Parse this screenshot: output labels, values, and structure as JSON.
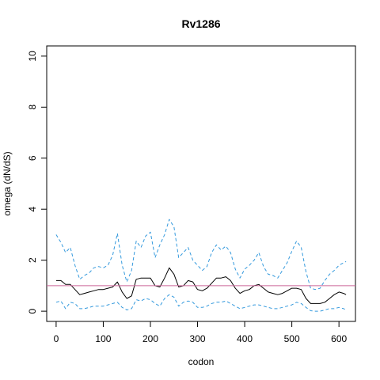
{
  "chart_data": {
    "type": "line",
    "title": "Rv1286",
    "xlabel": "codon",
    "ylabel": "omega (dN/dS)",
    "xlim": [
      -20,
      635
    ],
    "ylim": [
      -0.4,
      10.4
    ],
    "xticks": [
      0,
      100,
      200,
      300,
      400,
      500,
      600
    ],
    "yticks": [
      0,
      2,
      4,
      6,
      8,
      10
    ],
    "reference_line": {
      "y": 1,
      "color": "#cc6699"
    },
    "grid": false,
    "legend": "none",
    "series": [
      {
        "style": "solid",
        "color": "#000000",
        "points": [
          [
            0,
            1.2
          ],
          [
            10,
            1.2
          ],
          [
            20,
            1.05
          ],
          [
            30,
            1.05
          ],
          [
            40,
            0.85
          ],
          [
            50,
            0.65
          ],
          [
            60,
            0.7
          ],
          [
            70,
            0.75
          ],
          [
            80,
            0.8
          ],
          [
            90,
            0.85
          ],
          [
            100,
            0.85
          ],
          [
            110,
            0.9
          ],
          [
            120,
            0.95
          ],
          [
            130,
            1.15
          ],
          [
            140,
            0.75
          ],
          [
            150,
            0.5
          ],
          [
            160,
            0.6
          ],
          [
            170,
            1.25
          ],
          [
            180,
            1.3
          ],
          [
            190,
            1.3
          ],
          [
            200,
            1.3
          ],
          [
            210,
            1.0
          ],
          [
            220,
            0.95
          ],
          [
            230,
            1.3
          ],
          [
            240,
            1.7
          ],
          [
            250,
            1.45
          ],
          [
            260,
            0.95
          ],
          [
            270,
            1.0
          ],
          [
            280,
            1.2
          ],
          [
            290,
            1.15
          ],
          [
            300,
            0.85
          ],
          [
            310,
            0.8
          ],
          [
            320,
            0.9
          ],
          [
            330,
            1.1
          ],
          [
            340,
            1.3
          ],
          [
            350,
            1.3
          ],
          [
            360,
            1.35
          ],
          [
            370,
            1.2
          ],
          [
            380,
            0.9
          ],
          [
            390,
            0.7
          ],
          [
            400,
            0.8
          ],
          [
            410,
            0.85
          ],
          [
            420,
            1.0
          ],
          [
            430,
            1.05
          ],
          [
            440,
            0.9
          ],
          [
            450,
            0.75
          ],
          [
            460,
            0.7
          ],
          [
            470,
            0.65
          ],
          [
            480,
            0.7
          ],
          [
            490,
            0.8
          ],
          [
            500,
            0.9
          ],
          [
            510,
            0.9
          ],
          [
            520,
            0.85
          ],
          [
            530,
            0.5
          ],
          [
            540,
            0.3
          ],
          [
            550,
            0.3
          ],
          [
            560,
            0.3
          ],
          [
            570,
            0.35
          ],
          [
            580,
            0.5
          ],
          [
            590,
            0.65
          ],
          [
            600,
            0.75
          ],
          [
            610,
            0.7
          ],
          [
            615,
            0.65
          ]
        ]
      },
      {
        "style": "dashed",
        "color": "#3399dd",
        "points": [
          [
            0,
            3.0
          ],
          [
            10,
            2.7
          ],
          [
            20,
            2.3
          ],
          [
            30,
            2.5
          ],
          [
            40,
            1.8
          ],
          [
            50,
            1.25
          ],
          [
            60,
            1.4
          ],
          [
            70,
            1.5
          ],
          [
            80,
            1.7
          ],
          [
            90,
            1.75
          ],
          [
            100,
            1.7
          ],
          [
            110,
            1.8
          ],
          [
            120,
            2.2
          ],
          [
            130,
            3.05
          ],
          [
            140,
            1.8
          ],
          [
            150,
            1.15
          ],
          [
            160,
            1.6
          ],
          [
            170,
            2.75
          ],
          [
            180,
            2.5
          ],
          [
            190,
            2.95
          ],
          [
            200,
            3.1
          ],
          [
            210,
            2.1
          ],
          [
            220,
            2.6
          ],
          [
            230,
            3.0
          ],
          [
            240,
            3.6
          ],
          [
            250,
            3.3
          ],
          [
            260,
            2.1
          ],
          [
            270,
            2.3
          ],
          [
            280,
            2.5
          ],
          [
            290,
            2.0
          ],
          [
            300,
            1.8
          ],
          [
            310,
            1.6
          ],
          [
            320,
            1.75
          ],
          [
            330,
            2.3
          ],
          [
            340,
            2.6
          ],
          [
            350,
            2.4
          ],
          [
            360,
            2.55
          ],
          [
            370,
            2.3
          ],
          [
            380,
            1.65
          ],
          [
            390,
            1.3
          ],
          [
            400,
            1.65
          ],
          [
            410,
            1.8
          ],
          [
            420,
            2.0
          ],
          [
            430,
            2.3
          ],
          [
            440,
            1.75
          ],
          [
            450,
            1.45
          ],
          [
            460,
            1.4
          ],
          [
            470,
            1.3
          ],
          [
            480,
            1.6
          ],
          [
            490,
            1.9
          ],
          [
            500,
            2.35
          ],
          [
            510,
            2.75
          ],
          [
            520,
            2.5
          ],
          [
            530,
            1.55
          ],
          [
            540,
            0.9
          ],
          [
            550,
            0.85
          ],
          [
            560,
            0.9
          ],
          [
            570,
            1.2
          ],
          [
            580,
            1.45
          ],
          [
            590,
            1.6
          ],
          [
            600,
            1.8
          ],
          [
            610,
            1.9
          ],
          [
            615,
            1.95
          ]
        ]
      },
      {
        "style": "dashed",
        "color": "#3399dd",
        "points": [
          [
            0,
            0.35
          ],
          [
            10,
            0.4
          ],
          [
            20,
            0.1
          ],
          [
            30,
            0.35
          ],
          [
            40,
            0.3
          ],
          [
            50,
            0.1
          ],
          [
            60,
            0.1
          ],
          [
            70,
            0.15
          ],
          [
            80,
            0.2
          ],
          [
            90,
            0.2
          ],
          [
            100,
            0.2
          ],
          [
            110,
            0.25
          ],
          [
            120,
            0.3
          ],
          [
            130,
            0.35
          ],
          [
            140,
            0.15
          ],
          [
            150,
            0.05
          ],
          [
            160,
            0.1
          ],
          [
            170,
            0.45
          ],
          [
            180,
            0.4
          ],
          [
            190,
            0.5
          ],
          [
            200,
            0.45
          ],
          [
            210,
            0.3
          ],
          [
            220,
            0.2
          ],
          [
            230,
            0.5
          ],
          [
            240,
            0.65
          ],
          [
            250,
            0.55
          ],
          [
            260,
            0.2
          ],
          [
            270,
            0.35
          ],
          [
            280,
            0.4
          ],
          [
            290,
            0.35
          ],
          [
            300,
            0.15
          ],
          [
            310,
            0.15
          ],
          [
            320,
            0.2
          ],
          [
            330,
            0.3
          ],
          [
            340,
            0.35
          ],
          [
            350,
            0.35
          ],
          [
            360,
            0.4
          ],
          [
            370,
            0.3
          ],
          [
            380,
            0.2
          ],
          [
            390,
            0.1
          ],
          [
            400,
            0.15
          ],
          [
            410,
            0.2
          ],
          [
            420,
            0.25
          ],
          [
            430,
            0.25
          ],
          [
            440,
            0.2
          ],
          [
            450,
            0.15
          ],
          [
            460,
            0.1
          ],
          [
            470,
            0.1
          ],
          [
            480,
            0.15
          ],
          [
            490,
            0.2
          ],
          [
            500,
            0.25
          ],
          [
            510,
            0.35
          ],
          [
            520,
            0.3
          ],
          [
            530,
            0.15
          ],
          [
            540,
            0.02
          ],
          [
            550,
            0.0
          ],
          [
            560,
            0.0
          ],
          [
            570,
            0.05
          ],
          [
            580,
            0.1
          ],
          [
            590,
            0.1
          ],
          [
            600,
            0.15
          ],
          [
            610,
            0.1
          ],
          [
            615,
            0.05
          ]
        ]
      }
    ]
  }
}
